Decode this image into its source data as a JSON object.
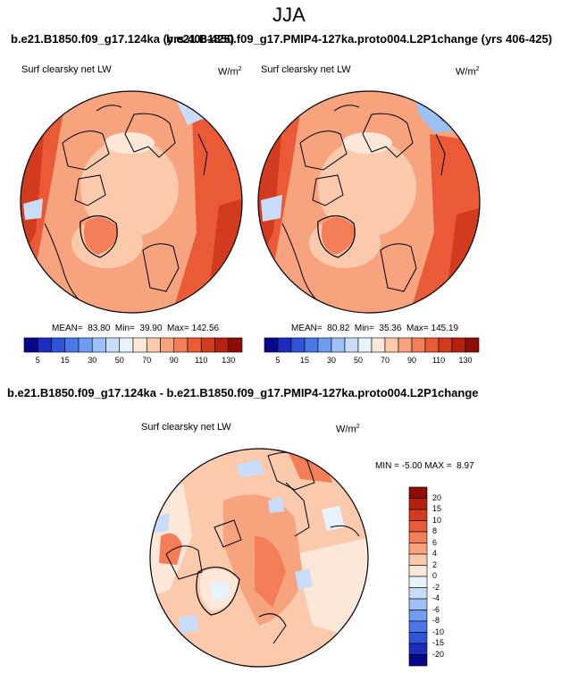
{
  "figure": {
    "title": "JJA",
    "left_run": "b.e21.B1850.f09_g17.124ka (yrs 406-425)",
    "right_run": "b.e21.B1850.f09_g17.PMIP4-127ka.proto004.L2P1change (yrs 406-425)",
    "diff_title": "b.e21.B1850.f09_g17.124ka - b.e21.B1850.f09_g17.PMIP4-127ka.proto004.L2P1change"
  },
  "chart_data": [
    {
      "type": "heatmap",
      "projection": "north-polar-stereographic",
      "panel": "left",
      "label": "Surf clearsky net LW",
      "units": "W/m",
      "units_sup": "2",
      "stats": {
        "mean_label": "MEAN=",
        "mean": "83.80",
        "min_label": "Min=",
        "min": "39.90",
        "max_label": "Max=",
        "max": "142.56"
      },
      "colorbar": {
        "orientation": "horizontal",
        "levels": [
          5,
          10,
          15,
          20,
          30,
          40,
          50,
          60,
          70,
          80,
          90,
          100,
          110,
          120,
          130
        ],
        "tick_labels": [
          "5",
          "15",
          "30",
          "50",
          "70",
          "90",
          "110",
          "130"
        ],
        "colors": [
          "#08088a",
          "#1a2dbf",
          "#2f54d6",
          "#4a78e6",
          "#6f9cf0",
          "#9dc0f7",
          "#c8ddfb",
          "#e8f2fd",
          "#fde7d9",
          "#fbc9ac",
          "#f7a37e",
          "#f37e57",
          "#ea5a36",
          "#d33b1f",
          "#b4220e",
          "#8e0c05"
        ]
      }
    },
    {
      "type": "heatmap",
      "projection": "north-polar-stereographic",
      "panel": "right",
      "label": "Surf clearsky net LW",
      "units": "W/m",
      "units_sup": "2",
      "stats": {
        "mean_label": "MEAN=",
        "mean": "80.82",
        "min_label": "Min=",
        "min": "35.36",
        "max_label": "Max=",
        "max": "145.19"
      },
      "colorbar": {
        "orientation": "horizontal",
        "levels": [
          5,
          10,
          15,
          20,
          30,
          40,
          50,
          60,
          70,
          80,
          90,
          100,
          110,
          120,
          130
        ],
        "tick_labels": [
          "5",
          "15",
          "30",
          "50",
          "70",
          "90",
          "110",
          "130"
        ],
        "colors": [
          "#08088a",
          "#1a2dbf",
          "#2f54d6",
          "#4a78e6",
          "#6f9cf0",
          "#9dc0f7",
          "#c8ddfb",
          "#e8f2fd",
          "#fde7d9",
          "#fbc9ac",
          "#f7a37e",
          "#f37e57",
          "#ea5a36",
          "#d33b1f",
          "#b4220e",
          "#8e0c05"
        ]
      }
    },
    {
      "type": "heatmap",
      "projection": "north-polar-stereographic",
      "panel": "difference",
      "label": "Surf clearsky net LW",
      "units": "W/m",
      "units_sup": "2",
      "stats": {
        "min_label": "MIN =",
        "min": "-5.00",
        "max_label": "MAX =",
        "max": "8.97"
      },
      "colorbar": {
        "orientation": "vertical",
        "tick_labels": [
          "20",
          "15",
          "10",
          "8",
          "6",
          "4",
          "2",
          "0",
          "-2",
          "-4",
          "-6",
          "-8",
          "-10",
          "-15",
          "-20"
        ],
        "colors": [
          "#8e0c05",
          "#b4220e",
          "#d33b1f",
          "#ea5a36",
          "#f37e57",
          "#f7a37e",
          "#fbc9ac",
          "#fde7d9",
          "#e8f2fd",
          "#c8ddfb",
          "#9dc0f7",
          "#6f9cf0",
          "#4a78e6",
          "#2f54d6",
          "#1a2dbf",
          "#08088a"
        ]
      }
    }
  ]
}
